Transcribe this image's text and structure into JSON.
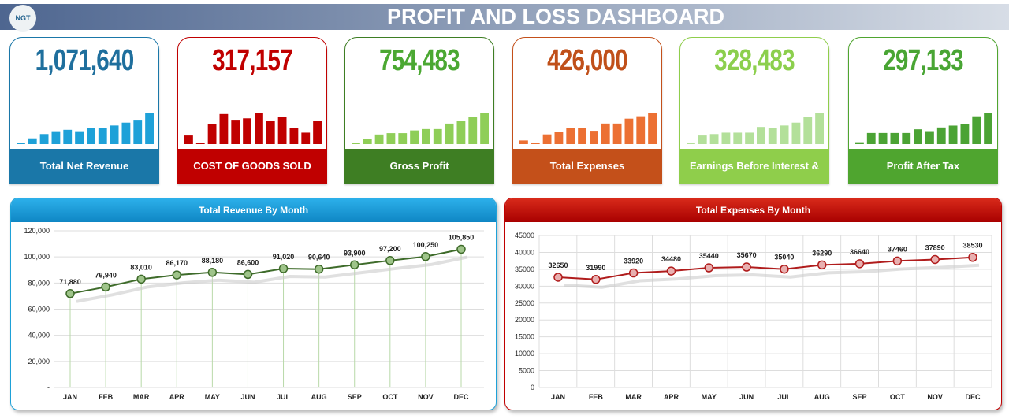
{
  "header": {
    "logo_text": "NGT",
    "title": "PROFIT AND LOSS  DASHBOARD"
  },
  "cards": [
    {
      "value": "1,071,640",
      "label": "Total Net Revenue",
      "color": "#1f6f9d",
      "band": "#1a77a8",
      "bar": "#1ea1d8",
      "spark": [
        1,
        4,
        7,
        9,
        10,
        9,
        11,
        11,
        13,
        15,
        17,
        22
      ]
    },
    {
      "value": "317,157",
      "label": "COST OF GOODS SOLD",
      "color": "#c00000",
      "band": "#c00000",
      "bar": "#c00000",
      "spark": [
        6,
        1,
        14,
        21,
        17,
        18,
        22,
        16,
        19,
        11,
        8,
        16
      ]
    },
    {
      "value": "754,483",
      "label": "Gross Profit",
      "color": "#4ba832",
      "band": "#3e7e23",
      "bar": "#8fce58",
      "spark": [
        1,
        4,
        7,
        8,
        8,
        10,
        11,
        11,
        15,
        17,
        20,
        23
      ]
    },
    {
      "value": "426,000",
      "label": "Total Expenses",
      "color": "#c0501a",
      "band": "#c4501a",
      "bar": "#ec7033",
      "spark": [
        3,
        1,
        8,
        10,
        13,
        13,
        11,
        17,
        17,
        21,
        23,
        26
      ]
    },
    {
      "value": "328,483",
      "label": "Earnings Before Interest &",
      "color": "#8ccf4d",
      "band": "#8fce4b",
      "bar": "#b3e09a",
      "spark": [
        1,
        6,
        7,
        8,
        8,
        8,
        12,
        11,
        13,
        15,
        19,
        22
      ]
    },
    {
      "value": "297,133",
      "label": "Profit After Tax",
      "color": "#49a534",
      "band": "#4fa52f",
      "bar": "#4ba334",
      "spark": [
        1,
        6,
        6,
        6,
        6,
        8,
        7,
        9,
        10,
        11,
        15,
        17
      ]
    }
  ],
  "revenue_chart": {
    "title": "Total Revenue By Month",
    "chart_data": {
      "type": "line",
      "categories": [
        "JAN",
        "FEB",
        "MAR",
        "APR",
        "MAY",
        "JUN",
        "JUL",
        "AUG",
        "SEP",
        "OCT",
        "NOV",
        "DEC"
      ],
      "values": [
        71880,
        76940,
        83010,
        86170,
        88180,
        86600,
        91020,
        90640,
        93900,
        97200,
        100250,
        105850
      ],
      "labels": [
        "71,880",
        "76,940",
        "83,010",
        "86,170",
        "88,180",
        "86,600",
        "91,020",
        "90,640",
        "93,900",
        "97,200",
        "100,250",
        "105,850"
      ],
      "yticks": [
        "-",
        "20,000",
        "40,000",
        "60,000",
        "80,000",
        "100,000",
        "120,000"
      ],
      "ylim": [
        0,
        120000
      ],
      "color": "#3e6b2a",
      "drop_color": "#b8d9a8",
      "grid": true
    }
  },
  "expenses_chart": {
    "title": "Total Expenses By Month",
    "chart_data": {
      "type": "line",
      "categories": [
        "JAN",
        "FEB",
        "MAR",
        "APR",
        "MAY",
        "JUN",
        "JUL",
        "AUG",
        "SEP",
        "OCT",
        "NOV",
        "DEC"
      ],
      "values": [
        32650,
        31990,
        33920,
        34480,
        35440,
        35670,
        35040,
        36290,
        36640,
        37460,
        37890,
        38530
      ],
      "labels": [
        "32650",
        "31990",
        "33920",
        "34480",
        "35440",
        "35670",
        "35040",
        "36290",
        "36640",
        "37460",
        "37890",
        "38530"
      ],
      "yticks": [
        "0",
        "5000",
        "10000",
        "15000",
        "20000",
        "25000",
        "30000",
        "35000",
        "40000",
        "45000"
      ],
      "ylim": [
        0,
        45000
      ],
      "color": "#b01c1c",
      "grid": true
    }
  }
}
